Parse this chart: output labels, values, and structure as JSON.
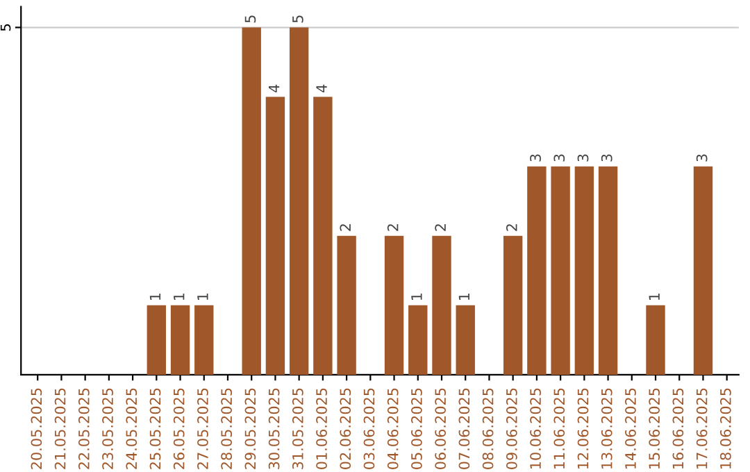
{
  "chart_data": {
    "type": "bar",
    "categories": [
      "20.05.2025",
      "21.05.2025",
      "22.05.2025",
      "23.05.2025",
      "24.05.2025",
      "25.05.2025",
      "26.05.2025",
      "27.05.2025",
      "28.05.2025",
      "29.05.2025",
      "30.05.2025",
      "31.05.2025",
      "01.06.2025",
      "02.06.2025",
      "03.06.2025",
      "04.06.2025",
      "05.06.2025",
      "06.06.2025",
      "07.06.2025",
      "08.06.2025",
      "09.06.2025",
      "10.06.2025",
      "11.06.2025",
      "12.06.2025",
      "13.06.2025",
      "14.06.2025",
      "15.06.2025",
      "16.06.2025",
      "17.06.2025",
      "18.06.2025"
    ],
    "values": [
      0,
      0,
      0,
      0,
      0,
      1,
      1,
      1,
      0,
      5,
      4,
      5,
      4,
      2,
      0,
      2,
      1,
      2,
      1,
      0,
      2,
      3,
      3,
      3,
      3,
      0,
      1,
      0,
      3,
      0
    ],
    "value_labels": [
      null,
      null,
      null,
      null,
      null,
      "1",
      "1",
      "1",
      null,
      "5",
      "4",
      "5",
      "4",
      "2",
      null,
      "2",
      "1",
      "2",
      "1",
      null,
      "2",
      "3",
      "3",
      "3",
      "3",
      null,
      "1",
      null,
      "3",
      null
    ],
    "color": "#a0572a",
    "ylim": [
      0,
      5.3
    ],
    "yticks": [
      5
    ],
    "grid": "y"
  }
}
